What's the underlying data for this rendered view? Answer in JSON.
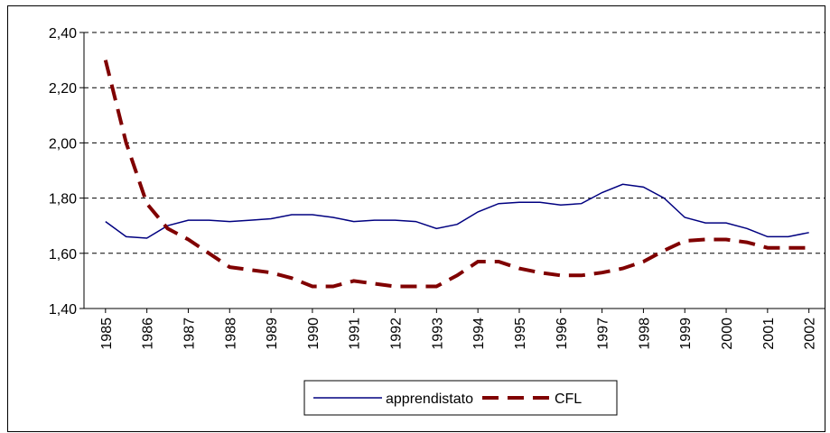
{
  "chart_data": {
    "type": "line",
    "x": [
      1985,
      1985.5,
      1986,
      1986.5,
      1987,
      1987.5,
      1988,
      1988.5,
      1989,
      1989.5,
      1990,
      1990.5,
      1991,
      1991.5,
      1992,
      1992.5,
      1993,
      1993.5,
      1994,
      1994.5,
      1995,
      1995.5,
      1996,
      1996.5,
      1997,
      1997.5,
      1998,
      1998.5,
      1999,
      1999.5,
      2000,
      2000.5,
      2001,
      2001.5,
      2002
    ],
    "series": [
      {
        "name": "apprendistato",
        "color": "#000080",
        "values": [
          1.715,
          1.66,
          1.655,
          1.7,
          1.72,
          1.72,
          1.715,
          1.72,
          1.725,
          1.74,
          1.74,
          1.73,
          1.715,
          1.72,
          1.72,
          1.715,
          1.69,
          1.705,
          1.75,
          1.78,
          1.785,
          1.785,
          1.775,
          1.78,
          1.82,
          1.85,
          1.84,
          1.8,
          1.73,
          1.71,
          1.71,
          1.69,
          1.66,
          1.66,
          1.675
        ]
      },
      {
        "name": "CFL",
        "color": "#800000",
        "values": [
          2.3,
          2.0,
          1.78,
          1.69,
          1.65,
          1.6,
          1.55,
          1.54,
          1.53,
          1.51,
          1.48,
          1.48,
          1.5,
          1.49,
          1.48,
          1.48,
          1.48,
          1.52,
          1.57,
          1.57,
          1.545,
          1.53,
          1.52,
          1.52,
          1.53,
          1.545,
          1.57,
          1.61,
          1.645,
          1.65,
          1.65,
          1.64,
          1.62,
          1.62,
          1.62
        ]
      }
    ],
    "xlim": [
      1984.48,
      2002.4
    ],
    "xticks": [
      1985,
      1986,
      1987,
      1988,
      1989,
      1990,
      1991,
      1992,
      1993,
      1994,
      1995,
      1996,
      1997,
      1998,
      1999,
      2000,
      2001,
      2002
    ],
    "ylim": [
      1.4,
      2.4
    ],
    "yticks": [
      {
        "value": 1.4,
        "label": "1,40"
      },
      {
        "value": 1.6,
        "label": "1,60"
      },
      {
        "value": 1.8,
        "label": "1,80"
      },
      {
        "value": 2.0,
        "label": "2,00"
      },
      {
        "value": 2.2,
        "label": "2,20"
      },
      {
        "value": 2.4,
        "label": "2,40"
      }
    ],
    "grid": true,
    "legend": "bottom"
  }
}
